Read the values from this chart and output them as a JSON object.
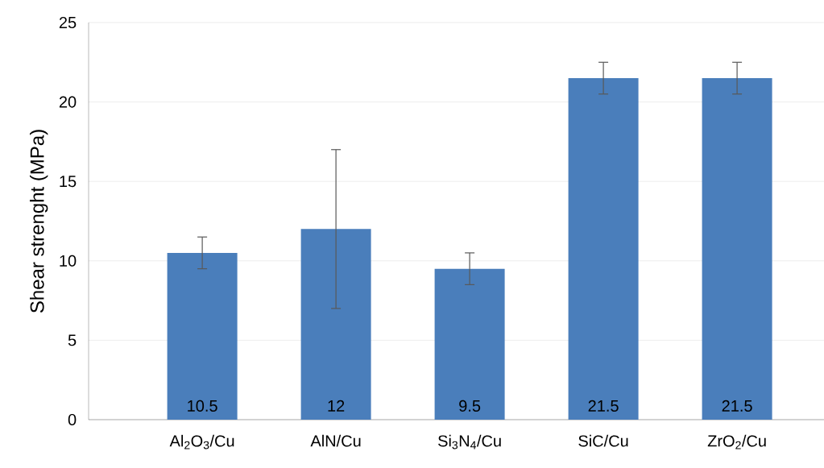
{
  "chart_data": {
    "type": "bar",
    "ylabel": "Shear strenght (MPa)",
    "categories": [
      "Al$_{2}$O$_{3}$/Cu",
      "AlN/Cu",
      "Si$_{3}$N$_{4}$/Cu",
      "SiC/Cu",
      "ZrO$_{2}$/Cu"
    ],
    "values": [
      10.5,
      12,
      9.5,
      21.5,
      21.5
    ],
    "errors": [
      1,
      5,
      1,
      1,
      1
    ],
    "color": "#4a7ebb",
    "ylim": [
      0,
      25
    ],
    "yticks": [
      0,
      5,
      10,
      15,
      20,
      25
    ],
    "grid": "y",
    "data_labels": true
  }
}
